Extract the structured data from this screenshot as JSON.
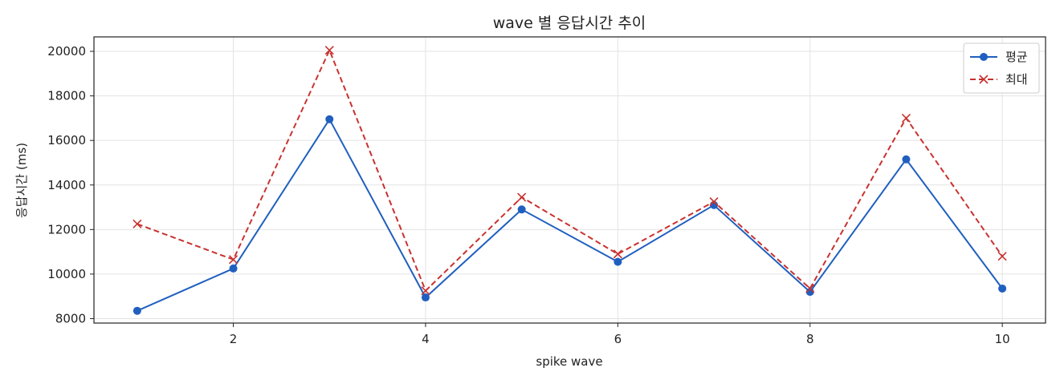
{
  "chart_data": {
    "type": "line",
    "title": "wave 별 응답시간 추이",
    "xlabel": "spike wave",
    "ylabel": "응답시간 (ms)",
    "x": [
      1,
      2,
      3,
      4,
      5,
      6,
      7,
      8,
      9,
      10
    ],
    "xlim": [
      0.55,
      10.45
    ],
    "ylim": [
      7800,
      20650
    ],
    "xticks": [
      2,
      4,
      6,
      8,
      10
    ],
    "yticks": [
      8000,
      10000,
      12000,
      14000,
      16000,
      18000,
      20000
    ],
    "grid": true,
    "legend_position": "top-right",
    "series": [
      {
        "name": "평균",
        "color": "#1f5fbf",
        "line_style": "solid",
        "marker": "circle",
        "values": [
          8350,
          10250,
          16950,
          8950,
          12900,
          10550,
          13100,
          9200,
          15150,
          9350
        ]
      },
      {
        "name": "최대",
        "color": "#c8322f",
        "line_style": "dashed",
        "marker": "x",
        "values": [
          12250,
          10650,
          20050,
          9250,
          13450,
          10900,
          13250,
          9350,
          17000,
          10800
        ]
      }
    ]
  }
}
